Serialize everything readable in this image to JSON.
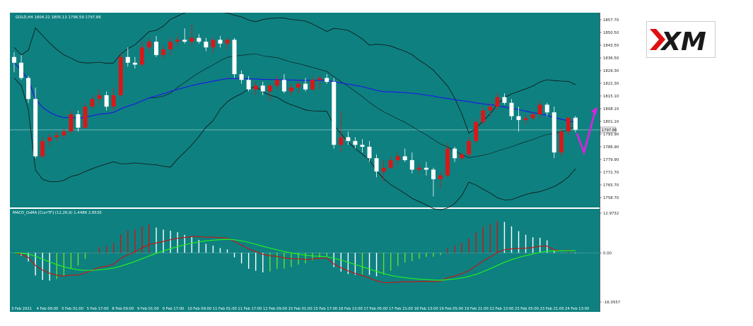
{
  "colors": {
    "background": "#0e8080",
    "grid": "#ffffff",
    "bull": "#d81818",
    "bear": "#ffffff",
    "ma": "#1c1ce0",
    "bands": "#111111",
    "macd_line": "#c01818",
    "signal_line": "#22ee22",
    "hist_pos_up": "#c81818",
    "hist_pos_down": "#ffffff",
    "hist_neg_up": "#66dd33",
    "hist_neg_down": "#ffffff",
    "arrow": "#e020e0",
    "logo_red": "#e01010",
    "logo_dark": "#1a1a1a"
  },
  "logo": {
    "text": "XM"
  },
  "chart_data": [
    {
      "type": "candlestick",
      "title": "GOLD,H4  1804.22 1805.13 1796.59 1797.86",
      "symbol": "GOLD,H4",
      "ohlc": {
        "open": 1804.22,
        "high": 1805.13,
        "low": 1796.59,
        "close": 1797.86
      },
      "price_ticks": [
        "1857.70",
        "1850.50",
        "1843.50",
        "1836.50",
        "1829.30",
        "1822.30",
        "1815.10",
        "1808.10",
        "1801.10",
        "1793.90",
        "1786.90",
        "1779.90",
        "1772.70",
        "1765.70",
        "1758.70"
      ],
      "current_price": "1797.86",
      "ylim": [
        1758.7,
        1857.7
      ],
      "x_labels": [
        "3 Feb 2021",
        "4 Feb 09:00",
        "5 Feb 01:00",
        "5 Feb 17:00",
        "8 Feb 09:00",
        "9 Feb 01:00",
        "9 Feb 17:00",
        "10 Feb 09:00",
        "11 Feb 01:00",
        "11 Feb 17:00",
        "12 Feb 09:00",
        "15 Feb 01:00",
        "15 Feb 17:00",
        "16 Feb 13:00",
        "17 Feb 05:00",
        "17 Feb 21:00",
        "18 Feb 13:00",
        "19 Feb 05:00",
        "19 Feb 21:00",
        "22 Feb 13:00",
        "23 Feb 05:00",
        "23 Feb 21:00",
        "24 Feb 13:00"
      ],
      "candles": [
        [
          1836.0,
          1838.5,
          1828.0,
          1833.0
        ],
        [
          1833.0,
          1837.0,
          1824.0,
          1825.0
        ],
        [
          1825.0,
          1826.0,
          1812.0,
          1814.0
        ],
        [
          1814.0,
          1820.0,
          1783.0,
          1784.0
        ],
        [
          1784.0,
          1794.0,
          1783.0,
          1792.0
        ],
        [
          1792.0,
          1796.0,
          1789.0,
          1794.0
        ],
        [
          1794.0,
          1797.0,
          1792.0,
          1795.0
        ],
        [
          1795.0,
          1799.0,
          1793.0,
          1797.0
        ],
        [
          1797.0,
          1808.0,
          1796.0,
          1806.0
        ],
        [
          1806.0,
          1808.0,
          1797.0,
          1799.0
        ],
        [
          1799.0,
          1812.0,
          1798.0,
          1810.0
        ],
        [
          1810.0,
          1816.0,
          1809.0,
          1814.0
        ],
        [
          1814.0,
          1819.0,
          1811.0,
          1816.0
        ],
        [
          1816.0,
          1818.0,
          1808.0,
          1810.0
        ],
        [
          1810.0,
          1820.0,
          1808.0,
          1816.0
        ],
        [
          1816.0,
          1838.0,
          1815.0,
          1836.0
        ],
        [
          1836.0,
          1841.0,
          1831.0,
          1833.0
        ],
        [
          1833.0,
          1836.0,
          1830.0,
          1832.0
        ],
        [
          1832.0,
          1844.0,
          1831.0,
          1841.0
        ],
        [
          1841.0,
          1846.0,
          1838.0,
          1844.0
        ],
        [
          1844.0,
          1847.0,
          1836.0,
          1837.0
        ],
        [
          1837.0,
          1842.0,
          1835.0,
          1840.0
        ],
        [
          1840.0,
          1846.0,
          1837.0,
          1844.0
        ],
        [
          1844.0,
          1847.0,
          1842.0,
          1845.0
        ],
        [
          1845.0,
          1851.0,
          1843.0,
          1844.0
        ],
        [
          1844.0,
          1853.0,
          1842.0,
          1846.0
        ],
        [
          1846.0,
          1848.0,
          1843.0,
          1844.0
        ],
        [
          1844.0,
          1846.0,
          1839.0,
          1841.0
        ],
        [
          1841.0,
          1846.0,
          1838.0,
          1845.0
        ],
        [
          1845.0,
          1847.0,
          1841.0,
          1843.0
        ],
        [
          1843.0,
          1846.0,
          1840.0,
          1845.0
        ],
        [
          1845.0,
          1846.0,
          1825.0,
          1827.0
        ],
        [
          1827.0,
          1829.0,
          1822.0,
          1824.0
        ],
        [
          1824.0,
          1826.0,
          1818.0,
          1819.0
        ],
        [
          1819.0,
          1823.0,
          1816.0,
          1821.0
        ],
        [
          1821.0,
          1823.0,
          1816.0,
          1818.0
        ],
        [
          1818.0,
          1822.0,
          1813.0,
          1821.0
        ],
        [
          1821.0,
          1826.0,
          1819.0,
          1824.0
        ],
        [
          1824.0,
          1827.0,
          1817.0,
          1818.0
        ],
        [
          1818.0,
          1822.0,
          1816.0,
          1820.0
        ],
        [
          1820.0,
          1823.0,
          1817.0,
          1822.0
        ],
        [
          1822.0,
          1825.0,
          1818.0,
          1819.0
        ],
        [
          1819.0,
          1826.0,
          1818.0,
          1824.0
        ],
        [
          1824.0,
          1826.0,
          1819.0,
          1825.0
        ],
        [
          1825.0,
          1827.0,
          1822.0,
          1823.0
        ],
        [
          1823.0,
          1825.0,
          1788.0,
          1790.0
        ],
        [
          1790.0,
          1808.0,
          1786.0,
          1794.0
        ],
        [
          1794.0,
          1797.0,
          1790.0,
          1792.0
        ],
        [
          1792.0,
          1794.0,
          1788.0,
          1790.0
        ],
        [
          1790.0,
          1793.0,
          1786.0,
          1789.0
        ],
        [
          1789.0,
          1792.0,
          1781.0,
          1783.0
        ],
        [
          1783.0,
          1785.0,
          1773.0,
          1776.0
        ],
        [
          1776.0,
          1782.0,
          1771.0,
          1778.0
        ],
        [
          1778.0,
          1784.0,
          1777.0,
          1782.0
        ],
        [
          1782.0,
          1786.0,
          1779.0,
          1784.0
        ],
        [
          1784.0,
          1788.0,
          1781.0,
          1782.0
        ],
        [
          1782.0,
          1786.0,
          1775.0,
          1777.0
        ],
        [
          1777.0,
          1780.0,
          1775.0,
          1778.0
        ],
        [
          1778.0,
          1781.0,
          1774.0,
          1777.0
        ],
        [
          1777.0,
          1778.0,
          1763.0,
          1772.0
        ],
        [
          1772.0,
          1776.0,
          1767.0,
          1774.0
        ],
        [
          1774.0,
          1791.0,
          1773.0,
          1788.0
        ],
        [
          1788.0,
          1789.0,
          1781.0,
          1783.0
        ],
        [
          1783.0,
          1786.0,
          1782.0,
          1785.0
        ],
        [
          1785.0,
          1794.0,
          1784.0,
          1792.0
        ],
        [
          1792.0,
          1804.0,
          1791.0,
          1802.0
        ],
        [
          1802.0,
          1810.0,
          1800.0,
          1808.0
        ],
        [
          1808.0,
          1812.0,
          1805.0,
          1810.0
        ],
        [
          1810.0,
          1817.0,
          1808.0,
          1815.0
        ],
        [
          1815.0,
          1817.0,
          1811.0,
          1812.0
        ],
        [
          1812.0,
          1814.0,
          1803.0,
          1805.0
        ],
        [
          1805.0,
          1810.0,
          1797.0,
          1803.0
        ],
        [
          1803.0,
          1806.0,
          1801.0,
          1804.0
        ],
        [
          1804.0,
          1807.0,
          1803.0,
          1806.0
        ],
        [
          1806.0,
          1813.0,
          1804.0,
          1811.0
        ],
        [
          1811.0,
          1812.0,
          1805.0,
          1807.0
        ],
        [
          1807.0,
          1810.0,
          1783.0,
          1786.0
        ],
        [
          1786.0,
          1799.0,
          1784.0,
          1797.0
        ],
        [
          1797.0,
          1804.0,
          1795.0,
          1804.2
        ],
        [
          1804.2,
          1805.1,
          1796.6,
          1797.9
        ]
      ]
    },
    {
      "type": "histogram",
      "title": "MACD_OsMA [CurrTF] (12,26,9) 1.4486 2.8530",
      "ticks": [
        "12.9732",
        "0.00",
        "-16.0557"
      ],
      "ylim": [
        -16.0557,
        12.9732
      ]
    }
  ]
}
